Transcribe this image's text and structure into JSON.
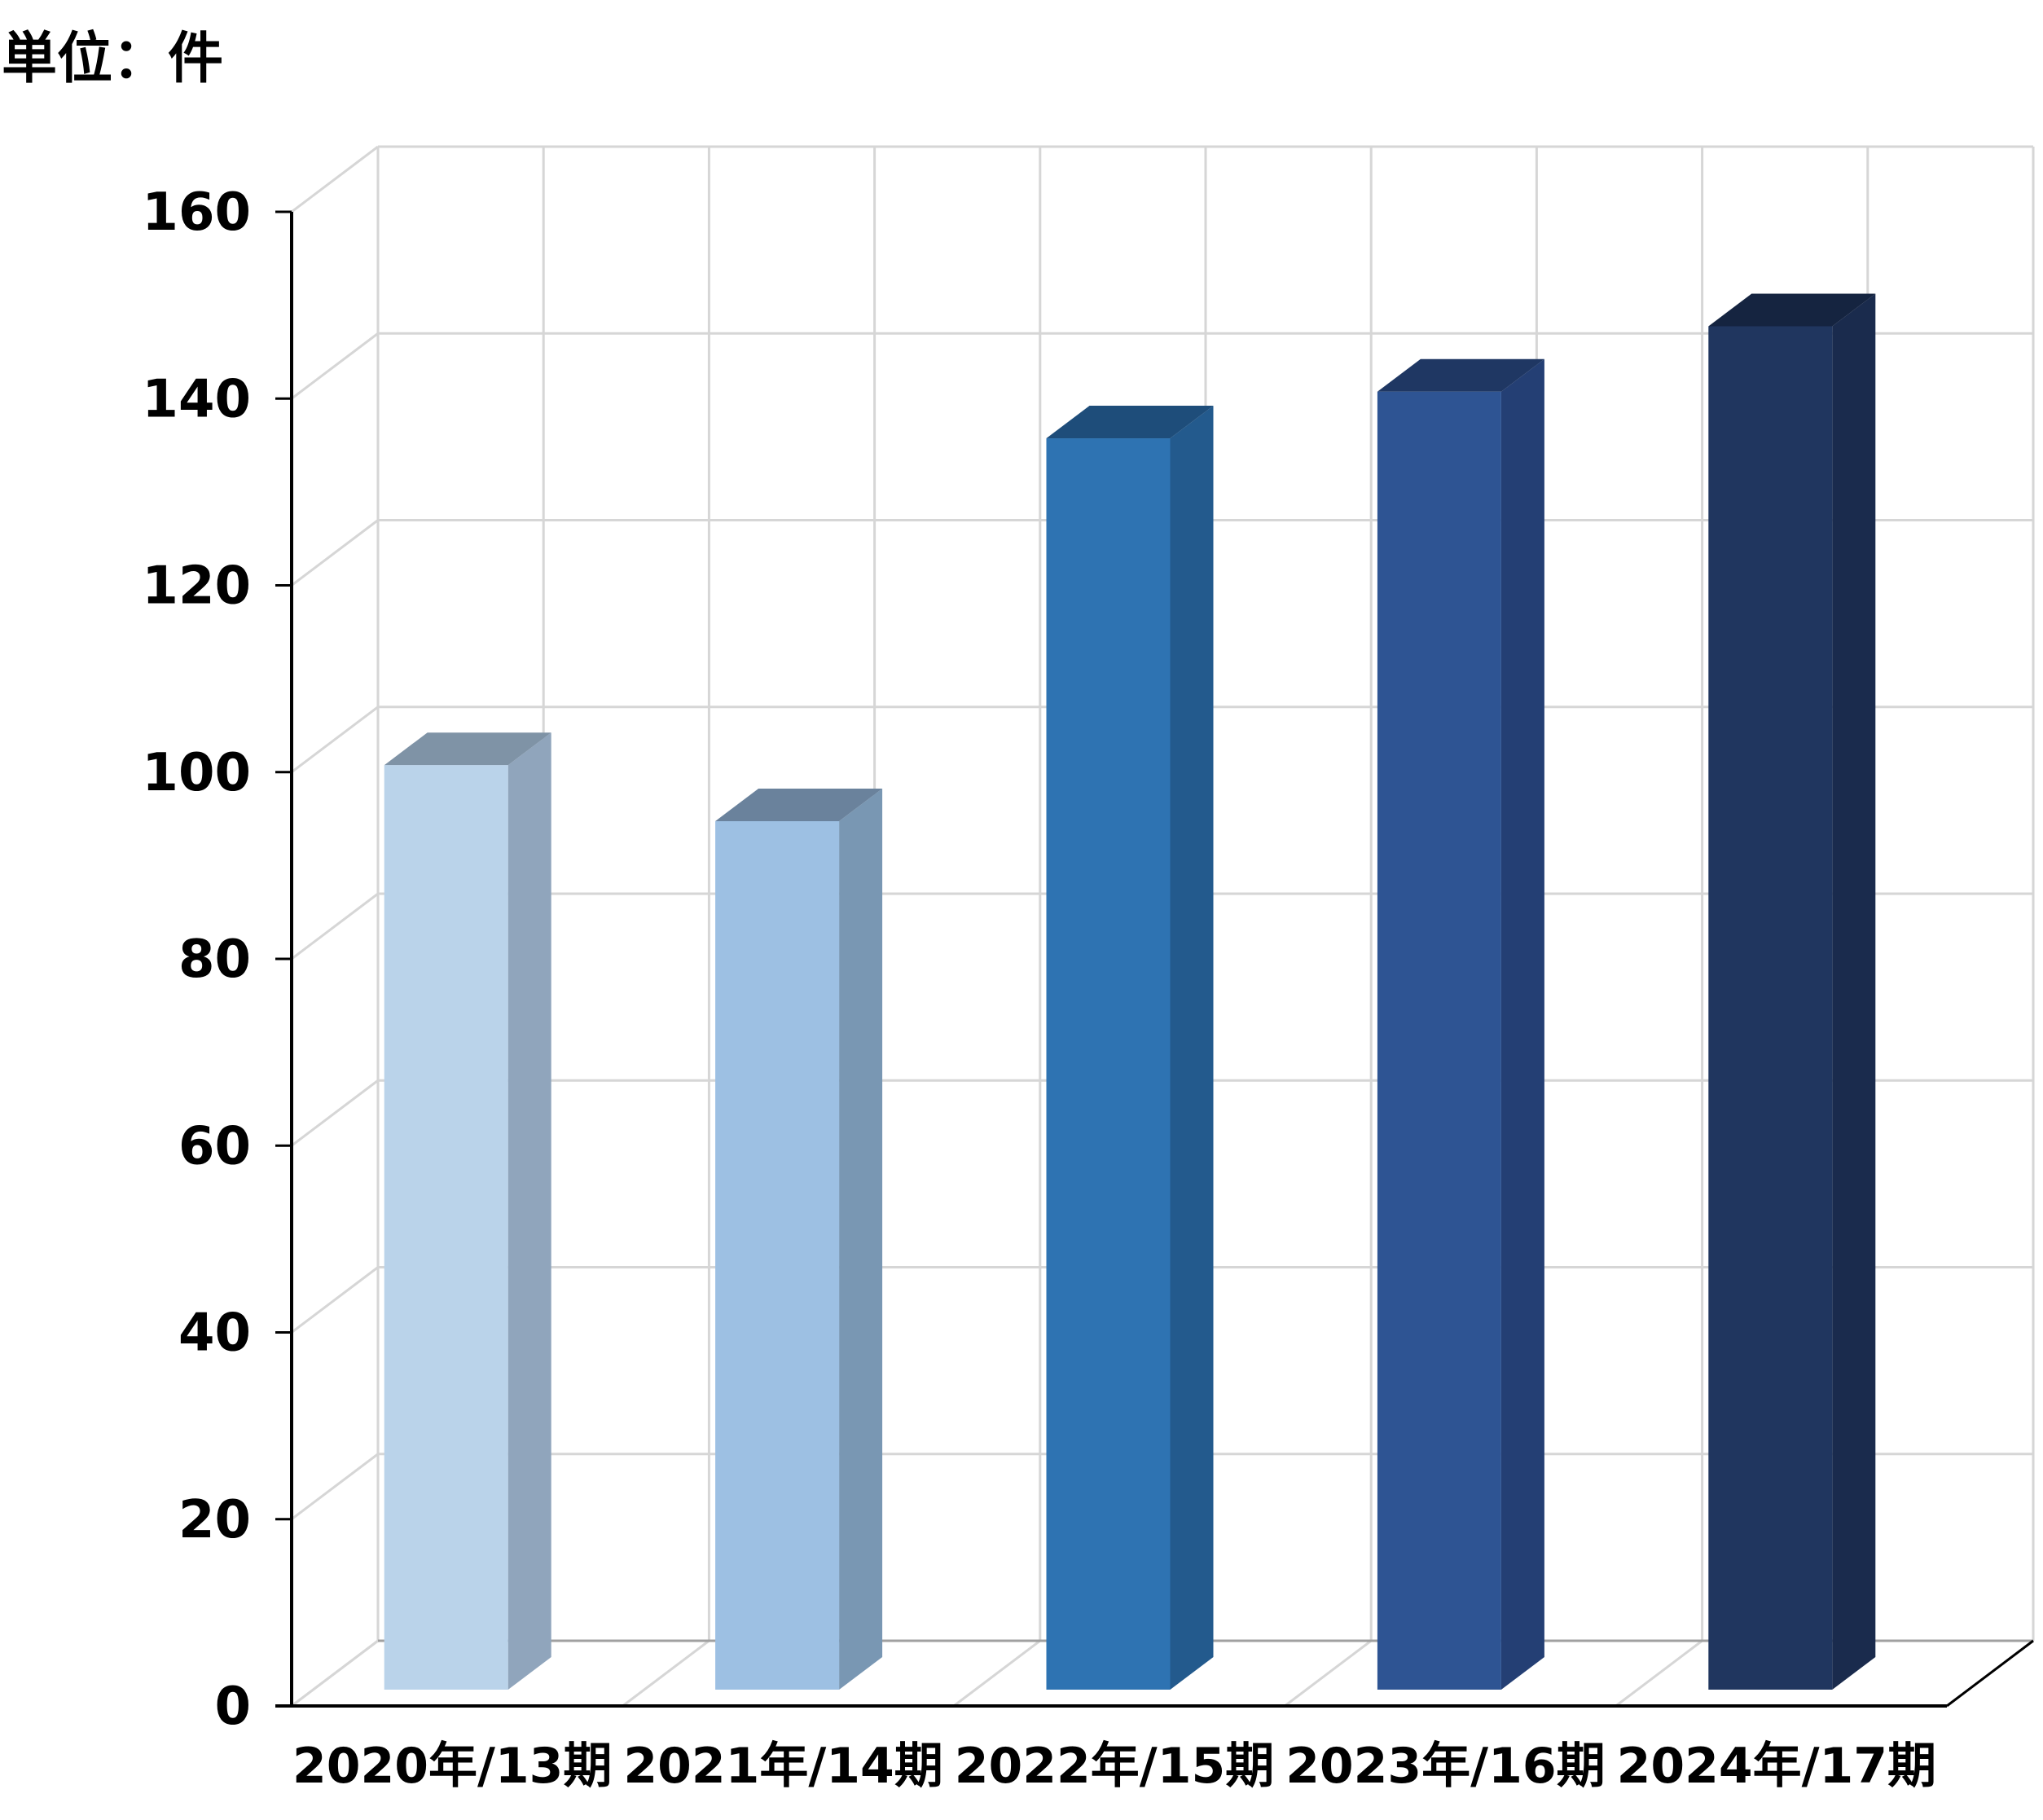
{
  "chart_data": {
    "type": "bar",
    "unit_label": "単位：件",
    "categories": [
      "2020年/13期",
      "2021年/14期",
      "2022年/15期",
      "2023年/16期",
      "2024年/17期"
    ],
    "values": [
      99,
      93,
      134,
      139,
      146
    ],
    "yticks": [
      "0",
      "20",
      "40",
      "60",
      "80",
      "100",
      "120",
      "140",
      "160"
    ],
    "ylim": [
      0,
      160
    ],
    "grid": true,
    "legend": "none",
    "bar_colors": [
      {
        "front": "#BAD3EA",
        "side": "#90A5BC",
        "top": "#7F93A6"
      },
      {
        "front": "#9DC0E3",
        "side": "#7997B3",
        "top": "#6A829C"
      },
      {
        "front": "#2E73B2",
        "side": "#235A8D",
        "top": "#1E4D7A"
      },
      {
        "front": "#2E5493",
        "side": "#243F74",
        "top": "#1F3763"
      },
      {
        "front": "#20365F",
        "side": "#1A2B4D",
        "top": "#152440"
      }
    ]
  }
}
